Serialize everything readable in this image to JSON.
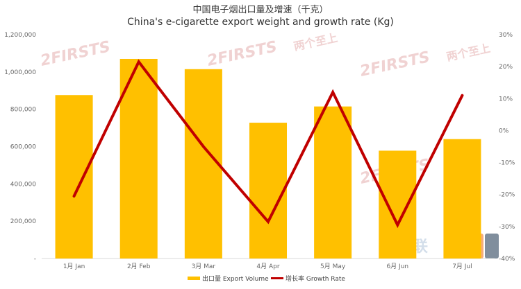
{
  "chart_data": {
    "type": "bar",
    "title": "中国电子烟出口量及增速（千克）",
    "subtitle": "China's e-cigarette export weight and growth rate (Kg)",
    "categories": [
      "1月 Jan",
      "2月 Feb",
      "3月 Mar",
      "4月 Apr",
      "5月 May",
      "6月 Jun",
      "7月 Jul"
    ],
    "series": [
      {
        "name": "出口量 Export Volume",
        "type": "bar",
        "axis": "left",
        "color": "#ffc000",
        "values": [
          876000,
          1070000,
          1015000,
          728000,
          815000,
          578000,
          640000
        ]
      },
      {
        "name": "增长率 Growth Rate",
        "type": "line",
        "axis": "right",
        "color": "#c00000",
        "values": [
          -0.205,
          0.215,
          -0.05,
          -0.285,
          0.12,
          -0.295,
          0.11
        ]
      }
    ],
    "y_left": {
      "ylim": [
        0,
        1200000
      ],
      "ticks": [
        0,
        200000,
        400000,
        600000,
        800000,
        1000000,
        1200000
      ],
      "tick_labels": [
        "-",
        "200,000",
        "400,000",
        "600,000",
        "800,000",
        "1,000,000",
        "1,200,000"
      ]
    },
    "y_right": {
      "ylim": [
        -0.4,
        0.3
      ],
      "ticks": [
        -0.4,
        -0.3,
        -0.2,
        -0.1,
        0,
        0.1,
        0.2,
        0.3
      ],
      "tick_labels": [
        "-40%",
        "-30%",
        "-20%",
        "-10%",
        "0%",
        "10%",
        "20%",
        "30%"
      ]
    },
    "legend_position": "bottom",
    "grid": false
  },
  "watermark": {
    "brand": "2FIRSTS",
    "brand_cn": "两个至上",
    "logo_cn": "蒸汽联"
  }
}
